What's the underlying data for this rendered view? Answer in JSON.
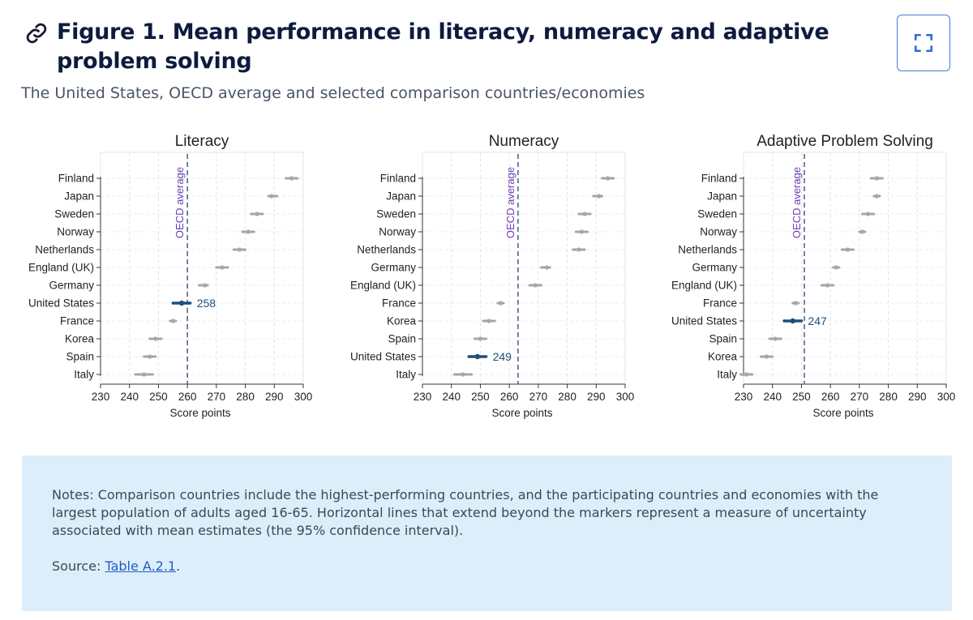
{
  "figure": {
    "title": "Figure 1. Mean performance in literacy, numeracy and adaptive problem solving",
    "subtitle": "The United States, OECD average and selected comparison countries/economies",
    "icons": {
      "title_link": "link-icon",
      "expand": "expand-icon"
    }
  },
  "notes": {
    "text": "Notes: Comparison countries include the highest-performing countries, and the participating countries and economies with the largest population of adults aged 16-65. Horizontal lines that extend beyond the markers represent a measure of uncertainty associated with mean estimates (the 95% confidence interval).",
    "source_prefix": "Source: ",
    "source_link": "Table A.2.1",
    "source_suffix": "."
  },
  "colors": {
    "marker": "#a6a6a6",
    "highlight": "#1f4e79",
    "oecd_line": "#4a6a8a",
    "oecd_label": "#6a3fb5",
    "link": "#1f5fbf"
  },
  "chart_data": [
    {
      "type": "scatter",
      "title": "Literacy",
      "xlabel": "Score points",
      "xlim": [
        230,
        300
      ],
      "xticks": [
        230,
        240,
        250,
        260,
        270,
        280,
        290,
        300
      ],
      "reference_line": {
        "label": "OECD average",
        "value": 260
      },
      "highlight": {
        "category": "United States",
        "label": "258"
      },
      "categories": [
        "Finland",
        "Japan",
        "Sweden",
        "Norway",
        "Netherlands",
        "England (UK)",
        "Germany",
        "United States",
        "France",
        "Korea",
        "Spain",
        "Italy"
      ],
      "values": [
        296,
        289,
        284,
        281,
        278,
        272,
        266,
        258,
        255,
        249,
        247,
        245
      ],
      "ci_low": [
        294,
        288,
        282,
        279,
        276,
        270,
        264,
        255,
        254,
        247,
        245,
        242
      ],
      "ci_high": [
        298,
        291,
        286,
        283,
        280,
        274,
        267,
        261,
        256,
        251,
        249,
        248
      ],
      "grid": true
    },
    {
      "type": "scatter",
      "title": "Numeracy",
      "xlabel": "Score points",
      "xlim": [
        230,
        300
      ],
      "xticks": [
        230,
        240,
        250,
        260,
        270,
        280,
        290,
        300
      ],
      "reference_line": {
        "label": "OECD average",
        "value": 263
      },
      "highlight": {
        "category": "United States",
        "label": "249"
      },
      "categories": [
        "Finland",
        "Japan",
        "Sweden",
        "Norway",
        "Netherlands",
        "Germany",
        "England (UK)",
        "France",
        "Korea",
        "Spain",
        "United States",
        "Italy"
      ],
      "values": [
        294,
        291,
        286,
        285,
        284,
        273,
        269,
        257,
        253,
        250,
        249,
        244
      ],
      "ci_low": [
        292,
        289,
        284,
        283,
        282,
        271,
        267,
        256,
        251,
        248,
        246,
        241
      ],
      "ci_high": [
        296,
        292,
        288,
        287,
        286,
        274,
        271,
        258,
        255,
        252,
        252,
        247
      ],
      "grid": true
    },
    {
      "type": "scatter",
      "title": "Adaptive Problem Solving",
      "xlabel": "Score points",
      "xlim": [
        230,
        300
      ],
      "xticks": [
        230,
        240,
        250,
        260,
        270,
        280,
        290,
        300
      ],
      "reference_line": {
        "label": "OECD average",
        "value": 251
      },
      "highlight": {
        "category": "United States",
        "label": "247"
      },
      "categories": [
        "Finland",
        "Japan",
        "Sweden",
        "Norway",
        "Netherlands",
        "Germany",
        "England (UK)",
        "France",
        "United States",
        "Spain",
        "Korea",
        "Italy"
      ],
      "values": [
        276,
        276,
        273,
        271,
        266,
        262,
        259,
        248,
        247,
        241,
        238,
        231
      ],
      "ci_low": [
        274,
        275,
        271,
        270,
        264,
        261,
        257,
        247,
        244,
        239,
        236,
        229
      ],
      "ci_high": [
        278,
        277,
        275,
        272,
        268,
        263,
        261,
        249,
        250,
        243,
        240,
        233
      ],
      "grid": true
    }
  ]
}
